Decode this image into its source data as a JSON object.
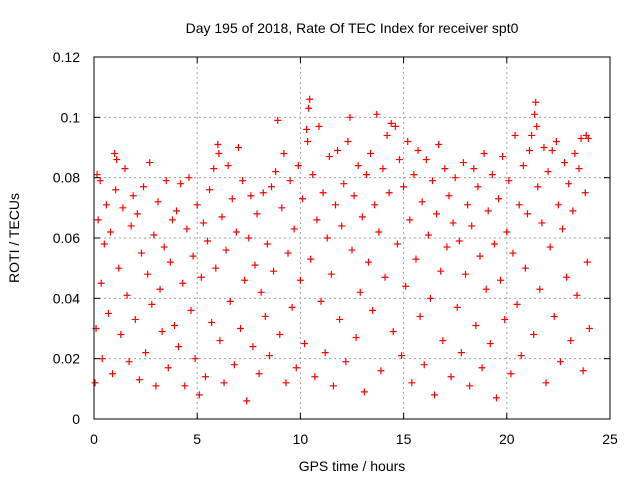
{
  "chart_data": {
    "type": "scatter",
    "title": "Day 195 of 2018, Rate Of TEC Index for receiver spt0",
    "xlabel": "GPS time / hours",
    "ylabel": "ROTI / TECUs",
    "xlim": [
      0,
      25
    ],
    "ylim": [
      0,
      0.12
    ],
    "x_ticks": [
      0,
      5,
      10,
      15,
      20,
      25
    ],
    "x_tick_labels": [
      "0",
      "5",
      "10",
      "15",
      "20",
      "25"
    ],
    "y_ticks": [
      0,
      0.02,
      0.04,
      0.06,
      0.08,
      0.1,
      0.12
    ],
    "y_tick_labels": [
      "0",
      "0.02",
      "0.04",
      "0.06",
      "0.08",
      "0.1",
      "0.12"
    ],
    "grid": true,
    "marker": "plus",
    "series": [
      {
        "name": "ROTI",
        "color": "#ff0000",
        "points": [
          [
            0.05,
            0.012
          ],
          [
            0.1,
            0.03
          ],
          [
            0.15,
            0.081
          ],
          [
            0.2,
            0.066
          ],
          [
            0.3,
            0.079
          ],
          [
            0.35,
            0.045
          ],
          [
            0.4,
            0.02
          ],
          [
            0.5,
            0.058
          ],
          [
            0.6,
            0.071
          ],
          [
            0.7,
            0.035
          ],
          [
            0.8,
            0.062
          ],
          [
            0.9,
            0.015
          ],
          [
            1.0,
            0.088
          ],
          [
            1.05,
            0.076
          ],
          [
            1.1,
            0.086
          ],
          [
            1.2,
            0.05
          ],
          [
            1.3,
            0.028
          ],
          [
            1.4,
            0.07
          ],
          [
            1.5,
            0.083
          ],
          [
            1.6,
            0.041
          ],
          [
            1.7,
            0.019
          ],
          [
            1.8,
            0.064
          ],
          [
            1.9,
            0.074
          ],
          [
            2.0,
            0.033
          ],
          [
            2.1,
            0.068
          ],
          [
            2.2,
            0.013
          ],
          [
            2.3,
            0.055
          ],
          [
            2.4,
            0.077
          ],
          [
            2.5,
            0.022
          ],
          [
            2.6,
            0.048
          ],
          [
            2.7,
            0.085
          ],
          [
            2.8,
            0.038
          ],
          [
            2.9,
            0.061
          ],
          [
            3.0,
            0.011
          ],
          [
            3.1,
            0.072
          ],
          [
            3.2,
            0.043
          ],
          [
            3.3,
            0.029
          ],
          [
            3.4,
            0.057
          ],
          [
            3.5,
            0.079
          ],
          [
            3.6,
            0.017
          ],
          [
            3.7,
            0.052
          ],
          [
            3.8,
            0.066
          ],
          [
            3.9,
            0.031
          ],
          [
            4.0,
            0.069
          ],
          [
            4.1,
            0.024
          ],
          [
            4.2,
            0.078
          ],
          [
            4.3,
            0.045
          ],
          [
            4.4,
            0.011
          ],
          [
            4.5,
            0.063
          ],
          [
            4.6,
            0.08
          ],
          [
            4.7,
            0.036
          ],
          [
            4.8,
            0.054
          ],
          [
            4.9,
            0.02
          ],
          [
            5.0,
            0.071
          ],
          [
            5.1,
            0.008
          ],
          [
            5.2,
            0.047
          ],
          [
            5.3,
            0.065
          ],
          [
            5.4,
            0.014
          ],
          [
            5.5,
            0.059
          ],
          [
            5.6,
            0.076
          ],
          [
            5.7,
            0.032
          ],
          [
            5.8,
            0.083
          ],
          [
            5.9,
            0.05
          ],
          [
            6.0,
            0.091
          ],
          [
            6.05,
            0.088
          ],
          [
            6.1,
            0.026
          ],
          [
            6.2,
            0.067
          ],
          [
            6.3,
            0.012
          ],
          [
            6.4,
            0.056
          ],
          [
            6.5,
            0.084
          ],
          [
            6.6,
            0.039
          ],
          [
            6.7,
            0.073
          ],
          [
            6.8,
            0.018
          ],
          [
            6.9,
            0.062
          ],
          [
            7.0,
            0.09
          ],
          [
            7.1,
            0.03
          ],
          [
            7.2,
            0.079
          ],
          [
            7.3,
            0.046
          ],
          [
            7.4,
            0.006
          ],
          [
            7.5,
            0.06
          ],
          [
            7.6,
            0.074
          ],
          [
            7.7,
            0.024
          ],
          [
            7.8,
            0.051
          ],
          [
            7.9,
            0.068
          ],
          [
            8.0,
            0.015
          ],
          [
            8.1,
            0.042
          ],
          [
            8.2,
            0.075
          ],
          [
            8.3,
            0.034
          ],
          [
            8.4,
            0.058
          ],
          [
            8.5,
            0.021
          ],
          [
            8.6,
            0.077
          ],
          [
            8.7,
            0.049
          ],
          [
            8.8,
            0.082
          ],
          [
            8.9,
            0.099
          ],
          [
            9.0,
            0.028
          ],
          [
            9.1,
            0.07
          ],
          [
            9.2,
            0.088
          ],
          [
            9.3,
            0.012
          ],
          [
            9.4,
            0.055
          ],
          [
            9.5,
            0.079
          ],
          [
            9.6,
            0.037
          ],
          [
            9.7,
            0.063
          ],
          [
            9.8,
            0.017
          ],
          [
            9.9,
            0.084
          ],
          [
            10.0,
            0.046
          ],
          [
            10.1,
            0.073
          ],
          [
            10.2,
            0.025
          ],
          [
            10.3,
            0.096
          ],
          [
            10.35,
            0.092
          ],
          [
            10.4,
            0.103
          ],
          [
            10.45,
            0.106
          ],
          [
            10.5,
            0.053
          ],
          [
            10.6,
            0.081
          ],
          [
            10.7,
            0.014
          ],
          [
            10.8,
            0.066
          ],
          [
            10.9,
            0.097
          ],
          [
            11.0,
            0.039
          ],
          [
            11.1,
            0.075
          ],
          [
            11.2,
            0.022
          ],
          [
            11.3,
            0.06
          ],
          [
            11.4,
            0.087
          ],
          [
            11.5,
            0.048
          ],
          [
            11.6,
            0.011
          ],
          [
            11.7,
            0.071
          ],
          [
            11.8,
            0.089
          ],
          [
            11.9,
            0.033
          ],
          [
            12.0,
            0.064
          ],
          [
            12.1,
            0.078
          ],
          [
            12.2,
            0.019
          ],
          [
            12.3,
            0.092
          ],
          [
            12.4,
            0.1
          ],
          [
            12.5,
            0.056
          ],
          [
            12.6,
            0.074
          ],
          [
            12.7,
            0.027
          ],
          [
            12.8,
            0.084
          ],
          [
            12.9,
            0.042
          ],
          [
            13.0,
            0.067
          ],
          [
            13.1,
            0.009
          ],
          [
            13.2,
            0.081
          ],
          [
            13.3,
            0.052
          ],
          [
            13.4,
            0.088
          ],
          [
            13.5,
            0.036
          ],
          [
            13.6,
            0.071
          ],
          [
            13.7,
            0.101
          ],
          [
            13.8,
            0.062
          ],
          [
            13.9,
            0.016
          ],
          [
            14.0,
            0.083
          ],
          [
            14.1,
            0.047
          ],
          [
            14.2,
            0.094
          ],
          [
            14.3,
            0.075
          ],
          [
            14.4,
            0.098
          ],
          [
            14.5,
            0.029
          ],
          [
            14.6,
            0.097
          ],
          [
            14.7,
            0.058
          ],
          [
            14.8,
            0.086
          ],
          [
            14.9,
            0.021
          ],
          [
            15.0,
            0.077
          ],
          [
            15.1,
            0.044
          ],
          [
            15.2,
            0.092
          ],
          [
            15.3,
            0.066
          ],
          [
            15.4,
            0.012
          ],
          [
            15.5,
            0.081
          ],
          [
            15.6,
            0.053
          ],
          [
            15.7,
            0.089
          ],
          [
            15.8,
            0.034
          ],
          [
            15.9,
            0.072
          ],
          [
            16.0,
            0.018
          ],
          [
            16.1,
            0.086
          ],
          [
            16.2,
            0.061
          ],
          [
            16.3,
            0.04
          ],
          [
            16.4,
            0.079
          ],
          [
            16.5,
            0.008
          ],
          [
            16.6,
            0.068
          ],
          [
            16.7,
            0.091
          ],
          [
            16.8,
            0.049
          ],
          [
            16.9,
            0.026
          ],
          [
            17.0,
            0.083
          ],
          [
            17.1,
            0.057
          ],
          [
            17.2,
            0.074
          ],
          [
            17.3,
            0.014
          ],
          [
            17.4,
            0.065
          ],
          [
            17.5,
            0.08
          ],
          [
            17.6,
            0.037
          ],
          [
            17.7,
            0.059
          ],
          [
            17.8,
            0.022
          ],
          [
            17.9,
            0.085
          ],
          [
            18.0,
            0.048
          ],
          [
            18.1,
            0.071
          ],
          [
            18.2,
            0.011
          ],
          [
            18.3,
            0.064
          ],
          [
            18.4,
            0.083
          ],
          [
            18.5,
            0.031
          ],
          [
            18.6,
            0.077
          ],
          [
            18.7,
            0.054
          ],
          [
            18.8,
            0.017
          ],
          [
            18.9,
            0.088
          ],
          [
            19.0,
            0.043
          ],
          [
            19.1,
            0.069
          ],
          [
            19.2,
            0.025
          ],
          [
            19.3,
            0.081
          ],
          [
            19.4,
            0.058
          ],
          [
            19.5,
            0.007
          ],
          [
            19.6,
            0.073
          ],
          [
            19.7,
            0.046
          ],
          [
            19.8,
            0.087
          ],
          [
            19.9,
            0.033
          ],
          [
            20.0,
            0.062
          ],
          [
            20.1,
            0.079
          ],
          [
            20.2,
            0.015
          ],
          [
            20.3,
            0.055
          ],
          [
            20.4,
            0.094
          ],
          [
            20.5,
            0.038
          ],
          [
            20.6,
            0.071
          ],
          [
            20.7,
            0.021
          ],
          [
            20.8,
            0.084
          ],
          [
            20.9,
            0.05
          ],
          [
            21.0,
            0.068
          ],
          [
            21.1,
            0.089
          ],
          [
            21.2,
            0.094
          ],
          [
            21.3,
            0.028
          ],
          [
            21.35,
            0.101
          ],
          [
            21.4,
            0.105
          ],
          [
            21.45,
            0.097
          ],
          [
            21.5,
            0.077
          ],
          [
            21.6,
            0.043
          ],
          [
            21.7,
            0.065
          ],
          [
            21.8,
            0.09
          ],
          [
            21.9,
            0.012
          ],
          [
            22.0,
            0.082
          ],
          [
            22.1,
            0.057
          ],
          [
            22.2,
            0.089
          ],
          [
            22.3,
            0.034
          ],
          [
            22.4,
            0.092
          ],
          [
            22.5,
            0.071
          ],
          [
            22.6,
            0.019
          ],
          [
            22.7,
            0.063
          ],
          [
            22.8,
            0.085
          ],
          [
            22.9,
            0.047
          ],
          [
            23.0,
            0.078
          ],
          [
            23.1,
            0.026
          ],
          [
            23.2,
            0.069
          ],
          [
            23.3,
            0.088
          ],
          [
            23.4,
            0.041
          ],
          [
            23.5,
            0.083
          ],
          [
            23.6,
            0.093
          ],
          [
            23.7,
            0.016
          ],
          [
            23.8,
            0.075
          ],
          [
            23.85,
            0.094
          ],
          [
            23.9,
            0.052
          ],
          [
            23.95,
            0.093
          ],
          [
            24.0,
            0.03
          ]
        ]
      }
    ]
  }
}
